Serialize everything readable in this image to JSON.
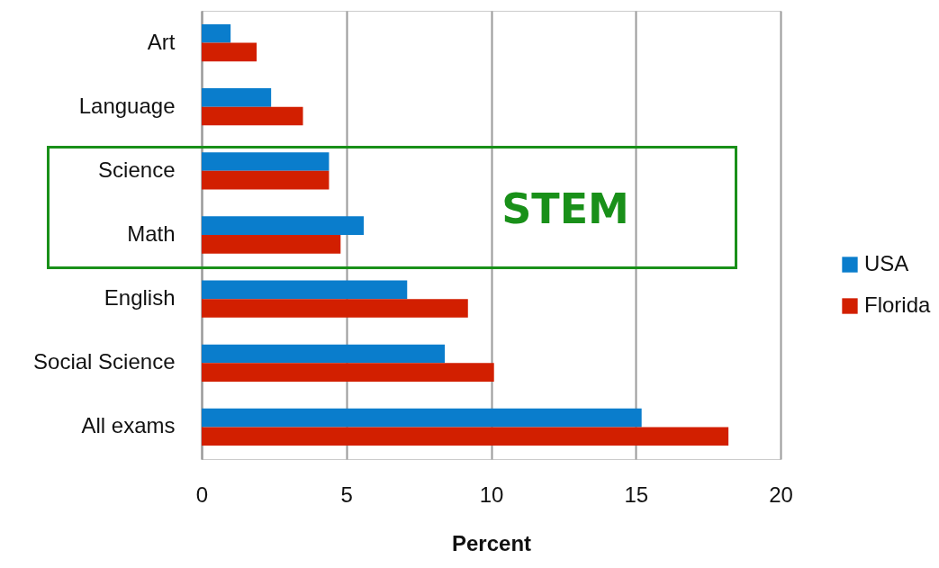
{
  "chart_data": {
    "type": "bar",
    "orientation": "horizontal",
    "xlabel": "Percent",
    "categories": [
      "Art",
      "Language",
      "Science",
      "Math",
      "English",
      "Social Science",
      "All exams"
    ],
    "series": [
      {
        "name": "USA",
        "color": "#0a7dcc",
        "values": [
          1.0,
          2.4,
          4.4,
          5.6,
          7.1,
          8.4,
          15.2
        ]
      },
      {
        "name": "Florida",
        "color": "#d21f00",
        "values": [
          1.9,
          3.5,
          4.4,
          4.8,
          9.2,
          10.1,
          18.2
        ]
      }
    ],
    "xlim": [
      0,
      20
    ],
    "xticks": [
      0,
      5,
      10,
      15,
      20
    ],
    "grid": "x",
    "legend": "right",
    "annotations": [
      "STEM"
    ]
  }
}
